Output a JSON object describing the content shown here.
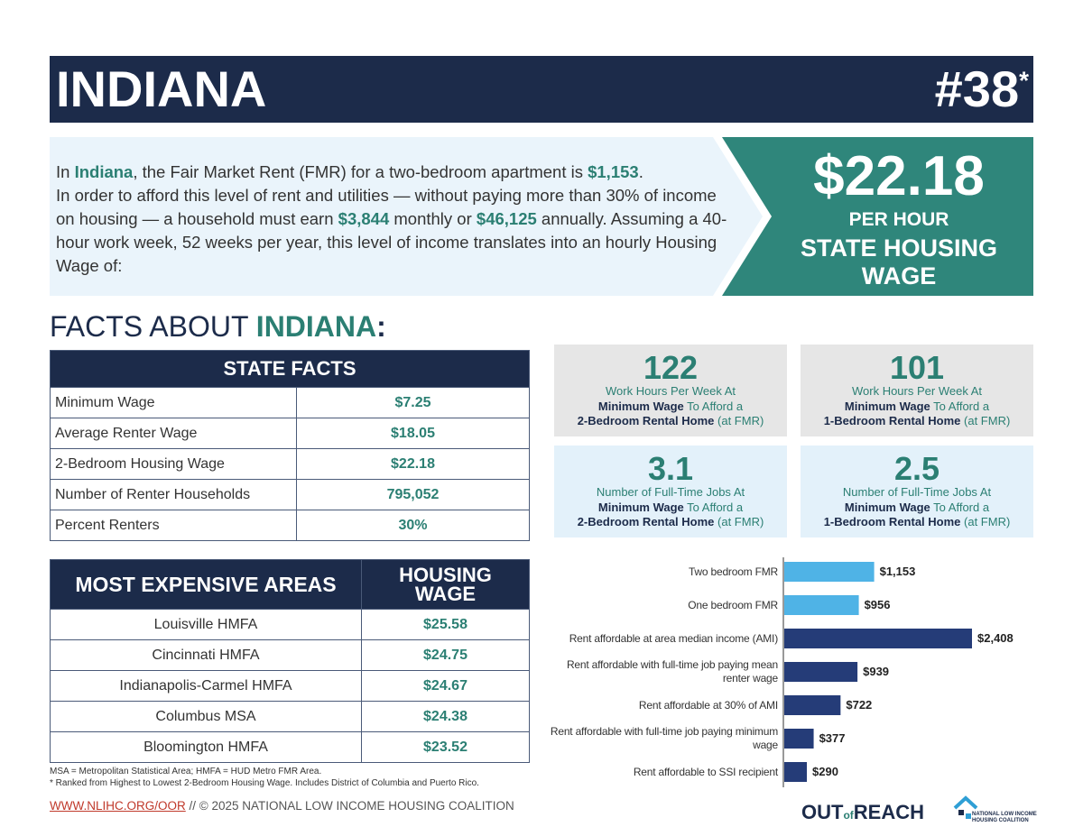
{
  "header": {
    "title": "INDIANA",
    "rank": "#38",
    "rank_note": "*"
  },
  "intro": [
    "In ",
    "Indiana",
    ", the Fair Market Rent (FMR) for a two-bedroom apartment is ",
    "$1,153",
    ".",
    "In order to afford this level of rent and utilities — without paying more than 30% of income on housing — a household must earn ",
    "$3,844",
    " monthly or ",
    "$46,125",
    " annually. Assuming a 40-hour work week, 52 weeks per year, this level of income translates into an hourly Housing Wage of:"
  ],
  "wage_box": {
    "amount": "$22.18",
    "unit": "PER HOUR",
    "label": "STATE HOUSING WAGE"
  },
  "facts_heading": [
    "FACTS ABOUT ",
    "INDIANA",
    ":"
  ],
  "state_facts": {
    "header": "STATE FACTS",
    "rows": [
      [
        "Minimum Wage",
        "$7.25"
      ],
      [
        "Average Renter Wage",
        "$18.05"
      ],
      [
        "2-Bedroom Housing Wage",
        "$22.18"
      ],
      [
        "Number of Renter Households",
        "795,052"
      ],
      [
        "Percent Renters",
        "30%"
      ]
    ]
  },
  "areas": {
    "headers": [
      "MOST EXPENSIVE AREAS",
      "HOUSING WAGE"
    ],
    "rows": [
      [
        "Louisville HMFA",
        "$25.58"
      ],
      [
        "Cincinnati HMFA",
        "$24.75"
      ],
      [
        "Indianapolis-Carmel HMFA",
        "$24.67"
      ],
      [
        "Columbus MSA",
        "$24.38"
      ],
      [
        "Bloomington HMFA",
        "$23.52"
      ]
    ]
  },
  "notes": [
    "MSA = Metropolitan Statistical Area; HMFA = HUD Metro FMR Area.",
    "* Ranked from Highest to Lowest 2-Bedroom Housing Wage. Includes District of Columbia and Puerto Rico."
  ],
  "stats": [
    {
      "number": "122",
      "lines": [
        [
          "Work Hours Per Week At"
        ],
        [
          "Minimum Wage",
          " To Afford a"
        ],
        [
          "2-Bedroom Rental Home",
          " (at FMR)"
        ]
      ]
    },
    {
      "number": "101",
      "lines": [
        [
          "Work Hours Per Week At"
        ],
        [
          "Minimum Wage",
          " To Afford a"
        ],
        [
          "1-Bedroom Rental Home",
          " (at FMR)"
        ]
      ]
    },
    {
      "number": "3.1",
      "lines": [
        [
          "Number of Full-Time Jobs At"
        ],
        [
          "Minimum Wage",
          " To Afford a"
        ],
        [
          "2-Bedroom Rental Home",
          " (at FMR)"
        ]
      ]
    },
    {
      "number": "2.5",
      "lines": [
        [
          "Number of Full-Time Jobs At"
        ],
        [
          "Minimum Wage",
          " To Afford a"
        ],
        [
          "1-Bedroom Rental Home",
          " (at FMR)"
        ]
      ]
    }
  ],
  "rent_chart": {
    "type": "bar",
    "orientation": "horizontal",
    "categories": [
      "Two bedroom FMR",
      "One bedroom FMR",
      "Rent affordable at area median income (AMI)",
      "Rent affordable with full-time job paying mean renter wage",
      "Rent affordable at 30% of AMI",
      "Rent affordable with full-time job paying minimum wage",
      "Rent affordable to SSI recipient"
    ],
    "values": [
      1153,
      956,
      2408,
      939,
      722,
      377,
      290
    ],
    "value_labels": [
      "$1,153",
      "$956",
      "$2,408",
      "$939",
      "$722",
      "$377",
      "$290"
    ],
    "colors": [
      "#4fb3e6",
      "#4fb3e6",
      "#253c78",
      "#253c78",
      "#253c78",
      "#253c78",
      "#253c78"
    ]
  },
  "footer": {
    "link": "WWW.NLIHC.ORG/OOR",
    "text": " // © 2025 NATIONAL LOW INCOME HOUSING COALITION"
  },
  "logos": {
    "out": "OUT",
    "of": "of",
    "reach": "REACH",
    "org": "NATIONAL LOW INCOME HOUSING COALITION"
  }
}
